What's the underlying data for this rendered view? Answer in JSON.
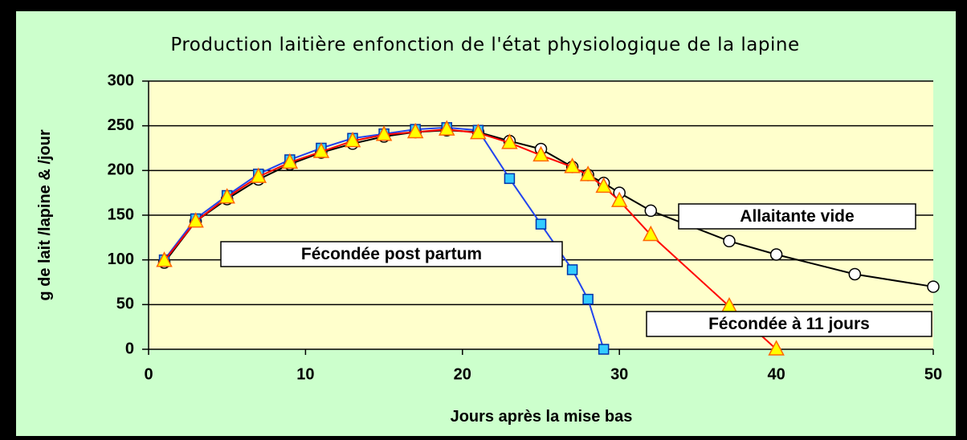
{
  "chart_data": {
    "type": "line",
    "title": "Production laitière enfonction de l'état physiologique de la lapine",
    "x_label": "Jours après la mise bas",
    "y_label": "g de lait /lapine & /jour",
    "xlim": [
      0,
      50
    ],
    "xticks": [
      0,
      10,
      20,
      30,
      40,
      50
    ],
    "ylim": [
      0,
      300
    ],
    "yticks": [
      0,
      50,
      100,
      150,
      200,
      250,
      300
    ],
    "grid": true,
    "series": [
      {
        "name": "Allaitante vide",
        "color": "#000000",
        "marker": "circle",
        "marker_color": "#ffffff",
        "x": [
          1,
          3,
          5,
          7,
          9,
          11,
          13,
          15,
          17,
          19,
          21,
          23,
          25,
          27,
          28,
          29,
          30,
          32,
          37,
          40,
          45,
          50
        ],
        "values": [
          97,
          143,
          168,
          190,
          207,
          220,
          230,
          238,
          243,
          245,
          243,
          233,
          224,
          204,
          195,
          186,
          175,
          155,
          121,
          106,
          84,
          70
        ]
      },
      {
        "name": "Fécondée post partum",
        "color": "#2244ee",
        "marker": "square",
        "marker_color": "#33ccff",
        "x": [
          1,
          3,
          5,
          7,
          9,
          11,
          13,
          15,
          17,
          19,
          21,
          23,
          25,
          27,
          28,
          29
        ],
        "values": [
          100,
          146,
          172,
          196,
          212,
          225,
          236,
          241,
          246,
          248,
          245,
          191,
          140,
          89,
          56,
          0
        ]
      },
      {
        "name": "Fécondée à 11 jours",
        "color": "#ff0000",
        "marker": "triangle",
        "marker_color": "#ffff00",
        "x": [
          1,
          3,
          5,
          7,
          9,
          11,
          13,
          15,
          17,
          19,
          21,
          23,
          25,
          27,
          28,
          29,
          30,
          32,
          37,
          40
        ],
        "values": [
          99,
          143,
          170,
          193,
          209,
          221,
          233,
          240,
          243,
          246,
          242,
          231,
          217,
          204,
          195,
          182,
          166,
          128,
          48,
          0
        ]
      }
    ]
  }
}
